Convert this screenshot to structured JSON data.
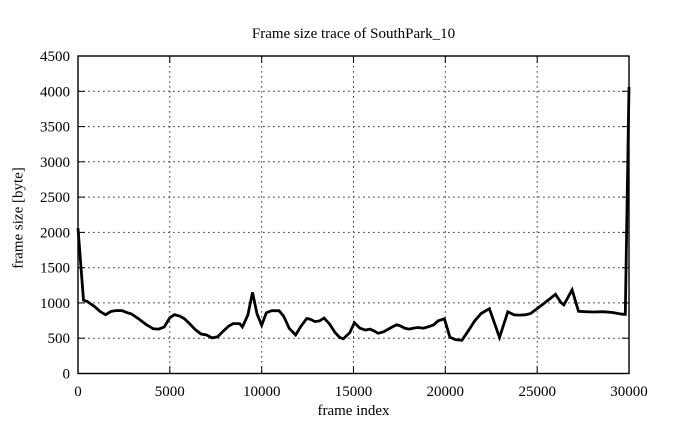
{
  "chart_data": {
    "type": "line",
    "title": "Frame size trace of SouthPark_10",
    "xlabel": "frame index",
    "ylabel": "frame size [byte]",
    "xlim": [
      0,
      30000
    ],
    "ylim": [
      0,
      4500
    ],
    "x_ticks": [
      0,
      5000,
      10000,
      15000,
      20000,
      25000,
      30000
    ],
    "y_ticks": [
      0,
      500,
      1000,
      1500,
      2000,
      2500,
      3000,
      3500,
      4000,
      4500
    ],
    "grid": true,
    "legend": "none",
    "line_color": "#000000",
    "grid_color": "#444444",
    "background": "#ffffff",
    "series": [
      {
        "points": [
          [
            0,
            2060
          ],
          [
            300,
            1040
          ],
          [
            500,
            1020
          ],
          [
            900,
            950
          ],
          [
            1200,
            880
          ],
          [
            1500,
            833
          ],
          [
            1800,
            880
          ],
          [
            2100,
            893
          ],
          [
            2400,
            890
          ],
          [
            2700,
            860
          ],
          [
            2900,
            845
          ],
          [
            3300,
            775
          ],
          [
            3700,
            695
          ],
          [
            4100,
            634
          ],
          [
            4400,
            630
          ],
          [
            4700,
            660
          ],
          [
            5000,
            790
          ],
          [
            5250,
            833
          ],
          [
            5550,
            812
          ],
          [
            5800,
            775
          ],
          [
            6100,
            700
          ],
          [
            6400,
            620
          ],
          [
            6700,
            560
          ],
          [
            7000,
            545
          ],
          [
            7300,
            505
          ],
          [
            7600,
            520
          ],
          [
            7900,
            600
          ],
          [
            8200,
            670
          ],
          [
            8450,
            707
          ],
          [
            8800,
            707
          ],
          [
            8950,
            660
          ],
          [
            9250,
            830
          ],
          [
            9500,
            1150
          ],
          [
            9750,
            840
          ],
          [
            10000,
            685
          ],
          [
            10250,
            860
          ],
          [
            10550,
            892
          ],
          [
            10950,
            888
          ],
          [
            11200,
            812
          ],
          [
            11500,
            640
          ],
          [
            11850,
            545
          ],
          [
            12150,
            675
          ],
          [
            12450,
            780
          ],
          [
            12650,
            770
          ],
          [
            12900,
            735
          ],
          [
            13150,
            745
          ],
          [
            13400,
            785
          ],
          [
            13700,
            700
          ],
          [
            14000,
            580
          ],
          [
            14250,
            510
          ],
          [
            14450,
            492
          ],
          [
            14800,
            580
          ],
          [
            15050,
            720
          ],
          [
            15350,
            642
          ],
          [
            15650,
            615
          ],
          [
            15900,
            630
          ],
          [
            16100,
            605
          ],
          [
            16350,
            570
          ],
          [
            16650,
            592
          ],
          [
            17050,
            652
          ],
          [
            17350,
            690
          ],
          [
            17550,
            675
          ],
          [
            17800,
            640
          ],
          [
            18050,
            630
          ],
          [
            18300,
            645
          ],
          [
            18550,
            652
          ],
          [
            18800,
            642
          ],
          [
            19050,
            660
          ],
          [
            19350,
            688
          ],
          [
            19600,
            745
          ],
          [
            19950,
            775
          ],
          [
            20250,
            515
          ],
          [
            20550,
            480
          ],
          [
            20900,
            470
          ],
          [
            21250,
            605
          ],
          [
            21600,
            745
          ],
          [
            21950,
            850
          ],
          [
            22400,
            918
          ],
          [
            22950,
            510
          ],
          [
            23400,
            875
          ],
          [
            23750,
            830
          ],
          [
            24050,
            828
          ],
          [
            24350,
            832
          ],
          [
            24650,
            850
          ],
          [
            24950,
            910
          ],
          [
            25300,
            980
          ],
          [
            25650,
            1050
          ],
          [
            26000,
            1122
          ],
          [
            26300,
            1005
          ],
          [
            26450,
            972
          ],
          [
            26900,
            1185
          ],
          [
            27250,
            882
          ],
          [
            27600,
            876
          ],
          [
            28100,
            872
          ],
          [
            28600,
            876
          ],
          [
            29100,
            865
          ],
          [
            29400,
            850
          ],
          [
            29650,
            840
          ],
          [
            29800,
            838
          ],
          [
            30000,
            4060
          ]
        ]
      }
    ]
  }
}
